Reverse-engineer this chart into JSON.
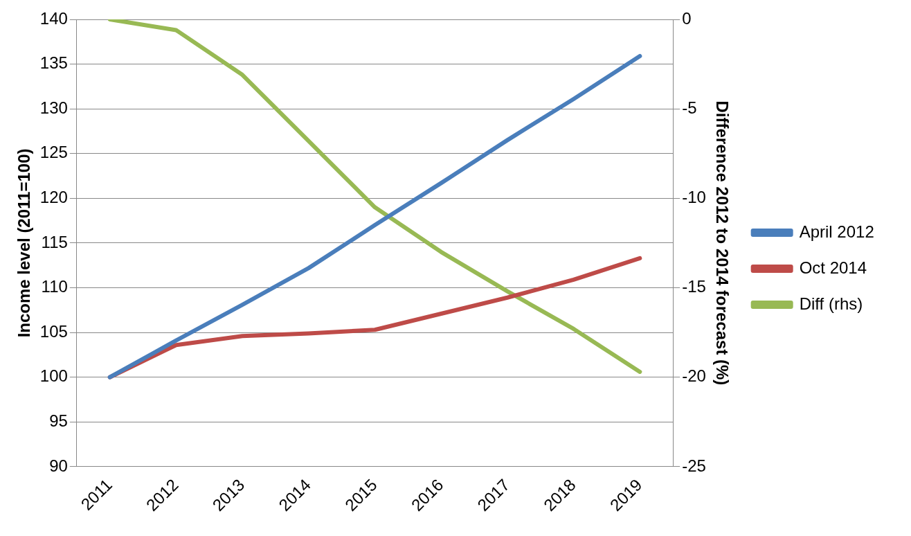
{
  "chart_data": {
    "type": "line",
    "categories": [
      "2011",
      "2012",
      "2013",
      "2014",
      "2015",
      "2016",
      "2017",
      "2018",
      "2019"
    ],
    "series": [
      {
        "name": "April 2012",
        "color": "#4a7ebb",
        "values": [
          100,
          104.1,
          108.1,
          112.2,
          117.0,
          121.7,
          126.5,
          131.1,
          135.9
        ]
      },
      {
        "name": "Oct 2014",
        "color": "#be4b48",
        "values": [
          100,
          103.6,
          104.6,
          104.9,
          105.3,
          107.1,
          108.9,
          110.9,
          113.3
        ]
      },
      {
        "name": "Diff (rhs)",
        "color": "#98b954",
        "axis": "y2",
        "values": [
          0,
          -0.6,
          -3.1,
          -6.8,
          -10.5,
          -13.0,
          -15.2,
          -17.3,
          -19.7
        ]
      }
    ],
    "ylabel": "Income level (2011=100)",
    "y2label": "Difference 2012 to 2014 forecast (%)",
    "ylim": [
      90,
      140
    ],
    "yticks": [
      90,
      95,
      100,
      105,
      110,
      115,
      120,
      125,
      130,
      135,
      140
    ],
    "y2lim": [
      -25,
      0
    ],
    "y2ticks": [
      -25,
      -20,
      -15,
      -10,
      -5,
      0
    ],
    "grid": "y",
    "legend": "right",
    "marker": "none",
    "line_style": "solid"
  }
}
